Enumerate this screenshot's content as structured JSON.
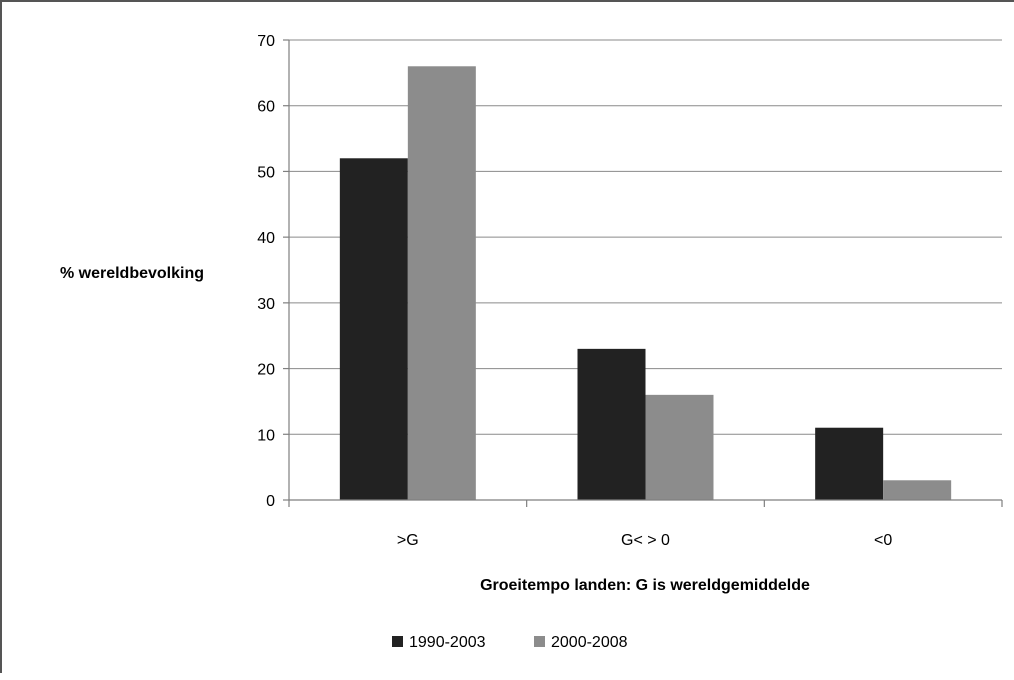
{
  "chart_data": {
    "type": "bar",
    "title": "",
    "xlabel": "Groeitempo landen: G is wereldgemiddelde",
    "ylabel": "% wereldbevolking",
    "ylim": [
      0,
      70
    ],
    "yticks": [
      0,
      10,
      20,
      30,
      40,
      50,
      60,
      70
    ],
    "categories": [
      ">G",
      "G< > 0",
      "<0"
    ],
    "series": [
      {
        "name": "1990-2003",
        "color": "#222222",
        "values": [
          52,
          23,
          11
        ]
      },
      {
        "name": "2000-2008",
        "color": "#8c8c8c",
        "values": [
          66,
          16,
          3
        ]
      }
    ],
    "grid": "horizontal",
    "legend_position": "bottom"
  }
}
